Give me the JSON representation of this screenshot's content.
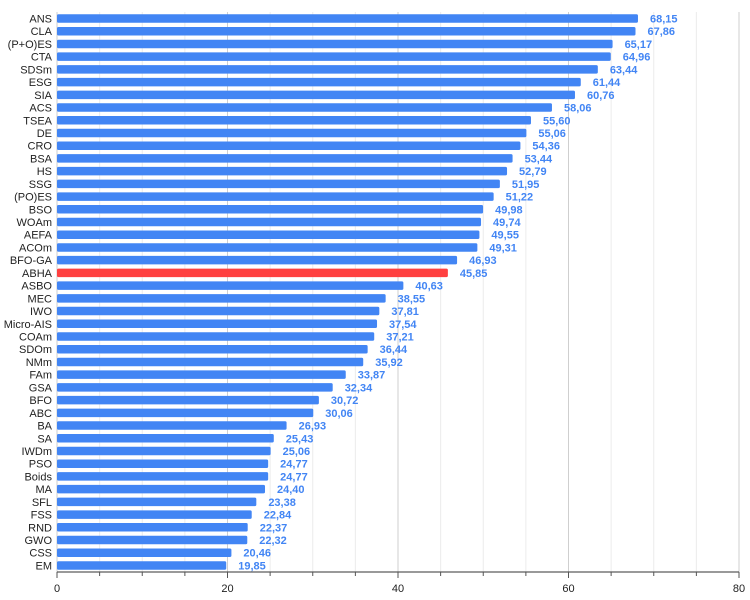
{
  "chart_data": {
    "type": "bar",
    "orientation": "horizontal",
    "categories": [
      "ANS",
      "CLA",
      "(P+O)ES",
      "CTA",
      "SDSm",
      "ESG",
      "SIA",
      "ACS",
      "TSEA",
      "DE",
      "CRO",
      "BSA",
      "HS",
      "SSG",
      "(PO)ES",
      "BSO",
      "WOAm",
      "AEFA",
      "ACOm",
      "BFO-GA",
      "ABHA",
      "ASBO",
      "MEC",
      "IWO",
      "Micro-AIS",
      "COAm",
      "SDOm",
      "NMm",
      "FAm",
      "GSA",
      "BFO",
      "ABC",
      "BA",
      "SA",
      "IWDm",
      "PSO",
      "Boids",
      "MA",
      "SFL",
      "FSS",
      "RND",
      "GWO",
      "CSS",
      "EM"
    ],
    "values": [
      68.15,
      67.86,
      65.17,
      64.96,
      63.44,
      61.44,
      60.76,
      58.06,
      55.6,
      55.06,
      54.36,
      53.44,
      52.79,
      51.95,
      51.22,
      49.98,
      49.74,
      49.55,
      49.31,
      46.93,
      45.85,
      40.63,
      38.55,
      37.81,
      37.54,
      37.21,
      36.44,
      35.92,
      33.87,
      32.34,
      30.72,
      30.06,
      26.93,
      25.43,
      25.06,
      24.77,
      24.77,
      24.4,
      23.38,
      22.84,
      22.37,
      22.32,
      20.46,
      19.85
    ],
    "value_labels": [
      "68,15",
      "67,86",
      "65,17",
      "64,96",
      "63,44",
      "61,44",
      "60,76",
      "58,06",
      "55,60",
      "55,06",
      "54,36",
      "53,44",
      "52,79",
      "51,95",
      "51,22",
      "49,98",
      "49,74",
      "49,55",
      "49,31",
      "46,93",
      "45,85",
      "40,63",
      "38,55",
      "37,81",
      "37,54",
      "37,21",
      "36,44",
      "35,92",
      "33,87",
      "32,34",
      "30,72",
      "30,06",
      "26,93",
      "25,43",
      "25,06",
      "24,77",
      "24,77",
      "24,40",
      "23,38",
      "22,84",
      "22,37",
      "22,32",
      "20,46",
      "19,85"
    ],
    "highlight": "ABHA",
    "xlim": [
      0,
      80
    ],
    "x_ticks": [
      0,
      20,
      40,
      60,
      80
    ],
    "x_tick_labels": [
      "0",
      "20",
      "40",
      "60",
      "80"
    ],
    "grid": true,
    "title": "",
    "xlabel": "",
    "ylabel": "",
    "colors": {
      "bar": "#4285f4",
      "highlight": "#ff4040",
      "label": "#4285f4",
      "grid": "#d9d9d9",
      "axis": "#333333"
    }
  }
}
